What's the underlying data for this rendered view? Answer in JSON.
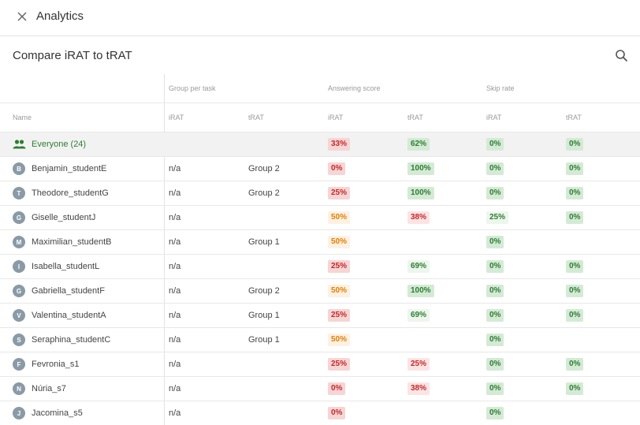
{
  "header": {
    "title": "Analytics"
  },
  "page": {
    "title": "Compare iRAT to tRAT"
  },
  "groups": {
    "group_per_task": "Group per task",
    "answering_score": "Answering score",
    "skip_rate": "Skip rate"
  },
  "columns": {
    "name": "Name",
    "irat": "iRAT",
    "trat": "tRAT"
  },
  "colors": {
    "red": "#c62828",
    "orange": "#e67e00",
    "green": "#2e7d32"
  },
  "everyone": {
    "label": "Everyone (24)",
    "answer_irat": "33%",
    "answer_trat": "62%",
    "skip_irat": "0%",
    "skip_trat": "0%"
  },
  "rows": [
    {
      "initial": "B",
      "name": "Benjamin_studentE",
      "gi": "n/a",
      "gt": "Group 2",
      "ai": "0%",
      "at": "100%",
      "si": "0%",
      "st": "0%"
    },
    {
      "initial": "T",
      "name": "Theodore_studentG",
      "gi": "n/a",
      "gt": "Group 2",
      "ai": "25%",
      "at": "100%",
      "si": "0%",
      "st": "0%"
    },
    {
      "initial": "G",
      "name": "Giselle_studentJ",
      "gi": "n/a",
      "gt": "",
      "ai": "50%",
      "at": "38%",
      "si": "25%",
      "st": "0%"
    },
    {
      "initial": "M",
      "name": "Maximilian_studentB",
      "gi": "n/a",
      "gt": "Group 1",
      "ai": "50%",
      "at": "",
      "si": "0%",
      "st": ""
    },
    {
      "initial": "I",
      "name": "Isabella_studentL",
      "gi": "n/a",
      "gt": "",
      "ai": "25%",
      "at": "69%",
      "si": "0%",
      "st": "0%"
    },
    {
      "initial": "G",
      "name": "Gabriella_studentF",
      "gi": "n/a",
      "gt": "Group 2",
      "ai": "50%",
      "at": "100%",
      "si": "0%",
      "st": "0%"
    },
    {
      "initial": "V",
      "name": "Valentina_studentA",
      "gi": "n/a",
      "gt": "Group 1",
      "ai": "25%",
      "at": "69%",
      "si": "0%",
      "st": "0%"
    },
    {
      "initial": "S",
      "name": "Seraphina_studentC",
      "gi": "n/a",
      "gt": "Group 1",
      "ai": "50%",
      "at": "",
      "si": "0%",
      "st": ""
    },
    {
      "initial": "F",
      "name": "Fevronia_s1",
      "gi": "n/a",
      "gt": "",
      "ai": "25%",
      "at": "25%",
      "si": "0%",
      "st": "0%"
    },
    {
      "initial": "N",
      "name": "Núria_s7",
      "gi": "n/a",
      "gt": "",
      "ai": "0%",
      "at": "38%",
      "si": "0%",
      "st": "0%"
    },
    {
      "initial": "J",
      "name": "Jacomina_s5",
      "gi": "n/a",
      "gt": "",
      "ai": "0%",
      "at": "",
      "si": "0%",
      "st": ""
    }
  ]
}
